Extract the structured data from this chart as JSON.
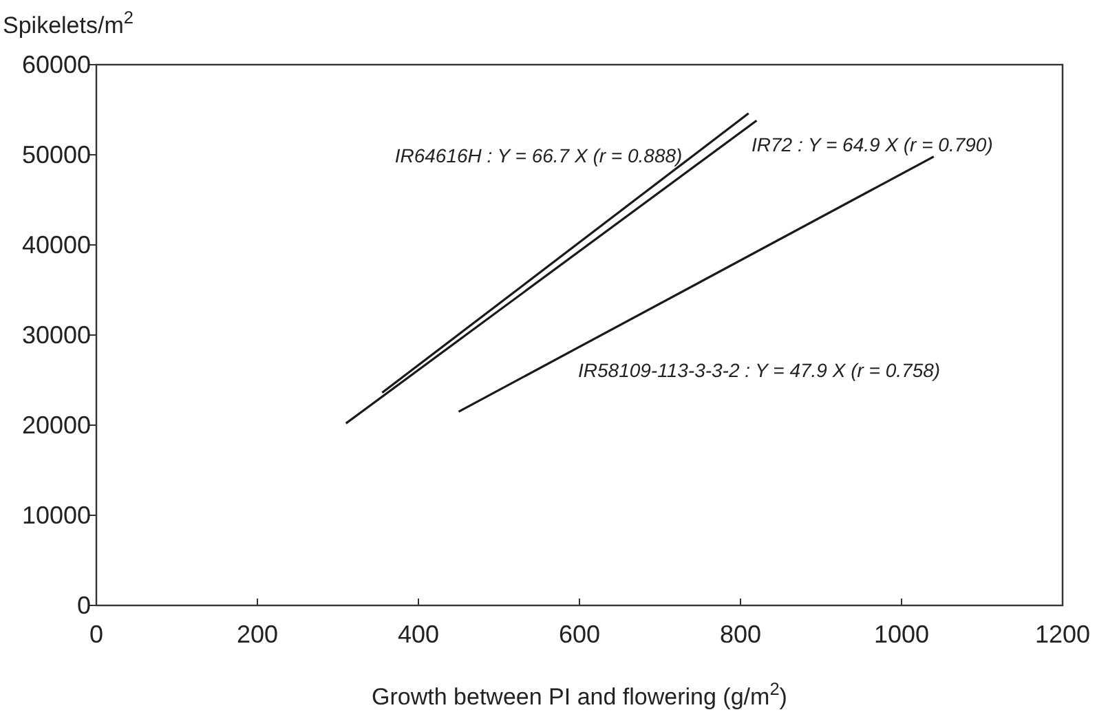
{
  "chart_data": {
    "type": "line",
    "xlabel": "Growth between PI and flowering (g/m$^{2}$)",
    "ylabel": "Spikelets/m$^{2}$",
    "xlim": [
      0,
      1200
    ],
    "xticks": [
      0,
      200,
      400,
      600,
      800,
      1000,
      1200
    ],
    "ylim": [
      0,
      60000
    ],
    "yticks": [
      0,
      10000,
      20000,
      30000,
      40000,
      50000,
      60000
    ],
    "grid": false,
    "marker": "none",
    "line_style": "solid",
    "series": [
      {
        "name": "IR64616H : Y = 66.7 X (r = 0.888)",
        "color": "#1a1a1a",
        "x": [
          355,
          810
        ],
        "values": [
          23600,
          54600
        ]
      },
      {
        "name": "IR72 : Y = 64.9 X (r = 0.790)",
        "color": "#1a1a1a",
        "x": [
          310,
          820
        ],
        "values": [
          20200,
          53800
        ]
      },
      {
        "name": "IR58109-113-3-3-2 : Y = 47.9 X (r = 0.758)",
        "color": "#1a1a1a",
        "x": [
          450,
          1040
        ],
        "values": [
          21500,
          49800
        ]
      }
    ]
  }
}
